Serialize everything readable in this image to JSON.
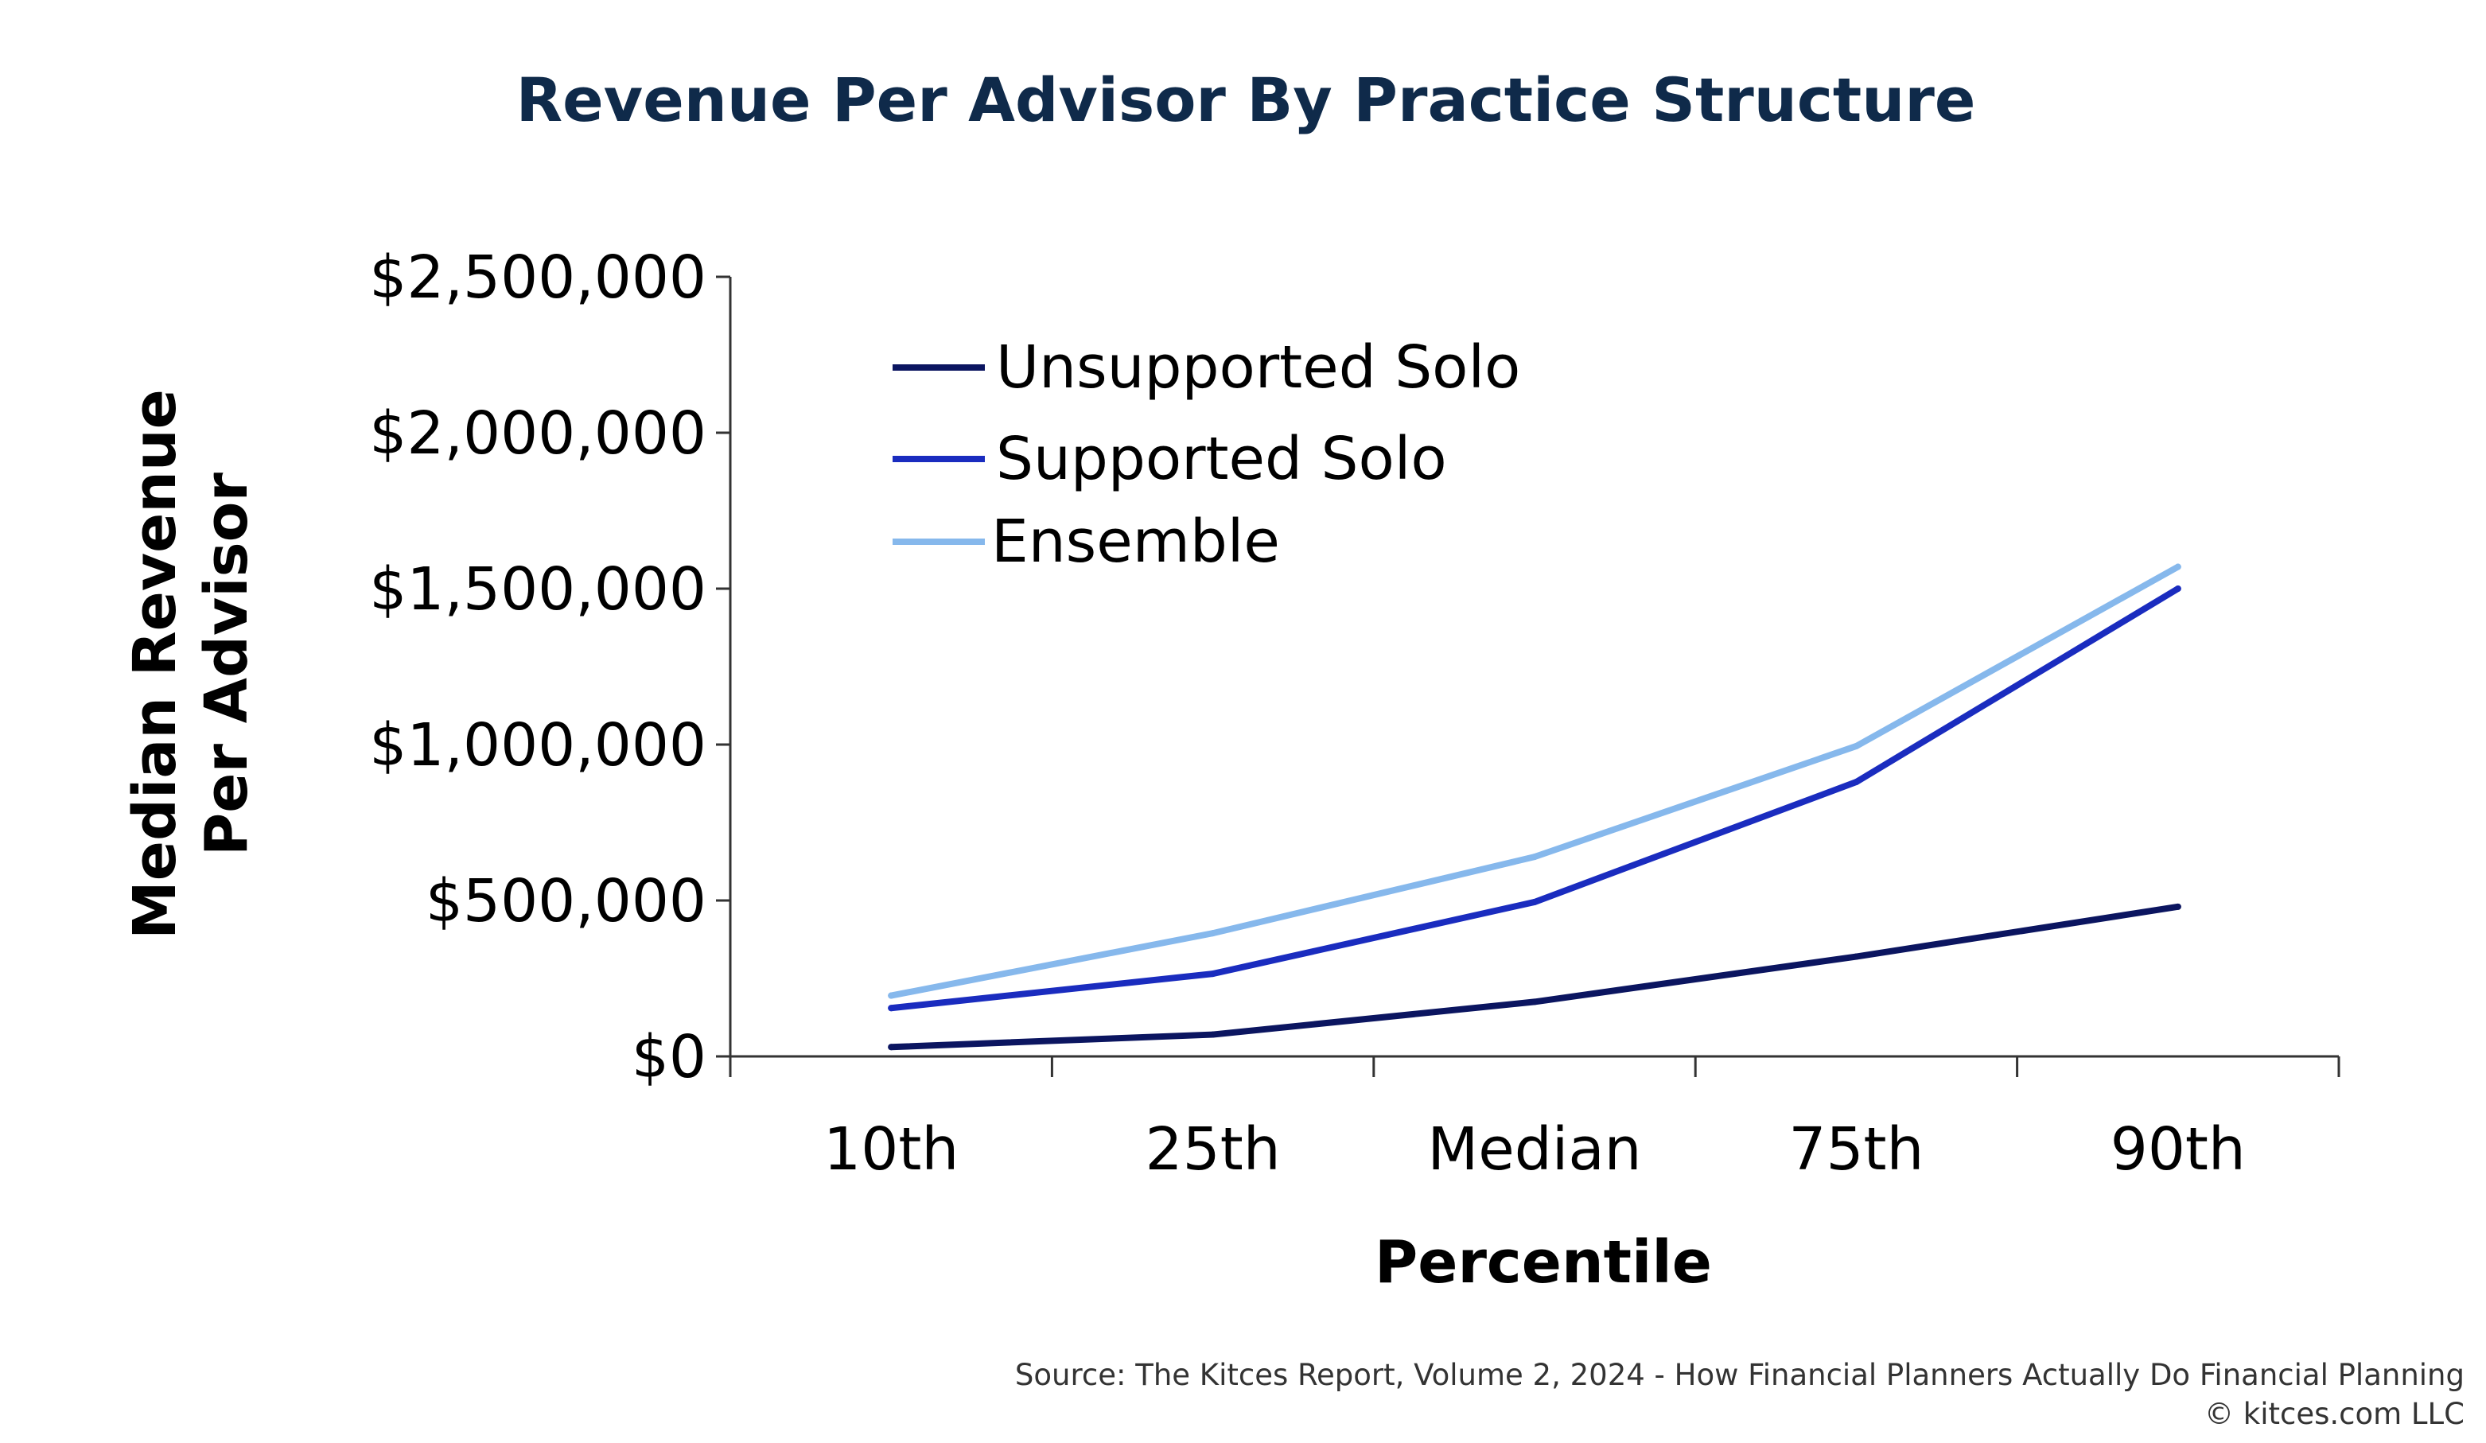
{
  "chart_data": {
    "type": "line",
    "title": "Revenue Per Advisor By Practice Structure",
    "xlabel": "Percentile",
    "ylabel_lines": [
      "Median Revenue",
      "Per Advisor"
    ],
    "categories": [
      "10th",
      "25th",
      "Median",
      "75th",
      "90th"
    ],
    "y_ticks": [
      "$0",
      "$500,000",
      "$1,000,000",
      "$1,500,000",
      "$2,000,000",
      "$2,500,000"
    ],
    "ylim": [
      0,
      2500000
    ],
    "grid": false,
    "legend_position": "top-left",
    "series": [
      {
        "name": "Unsupported Solo",
        "color": "#0b1560",
        "values": [
          30000,
          70000,
          175000,
          320000,
          480000
        ]
      },
      {
        "name": "Supported Solo",
        "color": "#1a2cbf",
        "values": [
          155000,
          265000,
          495000,
          880000,
          1500000
        ]
      },
      {
        "name": "Ensemble",
        "color": "#86b8ec",
        "values": [
          195000,
          395000,
          640000,
          995000,
          1570000
        ]
      }
    ],
    "colors": {
      "title": "#0f2a4a",
      "axis": "#222222",
      "text": "#000000",
      "source": "#333333"
    }
  },
  "source_line": "Source: The Kitces Report, Volume 2, 2024 - How Financial Planners Actually Do Financial Planning",
  "copyright": "© kitces.com LLC"
}
